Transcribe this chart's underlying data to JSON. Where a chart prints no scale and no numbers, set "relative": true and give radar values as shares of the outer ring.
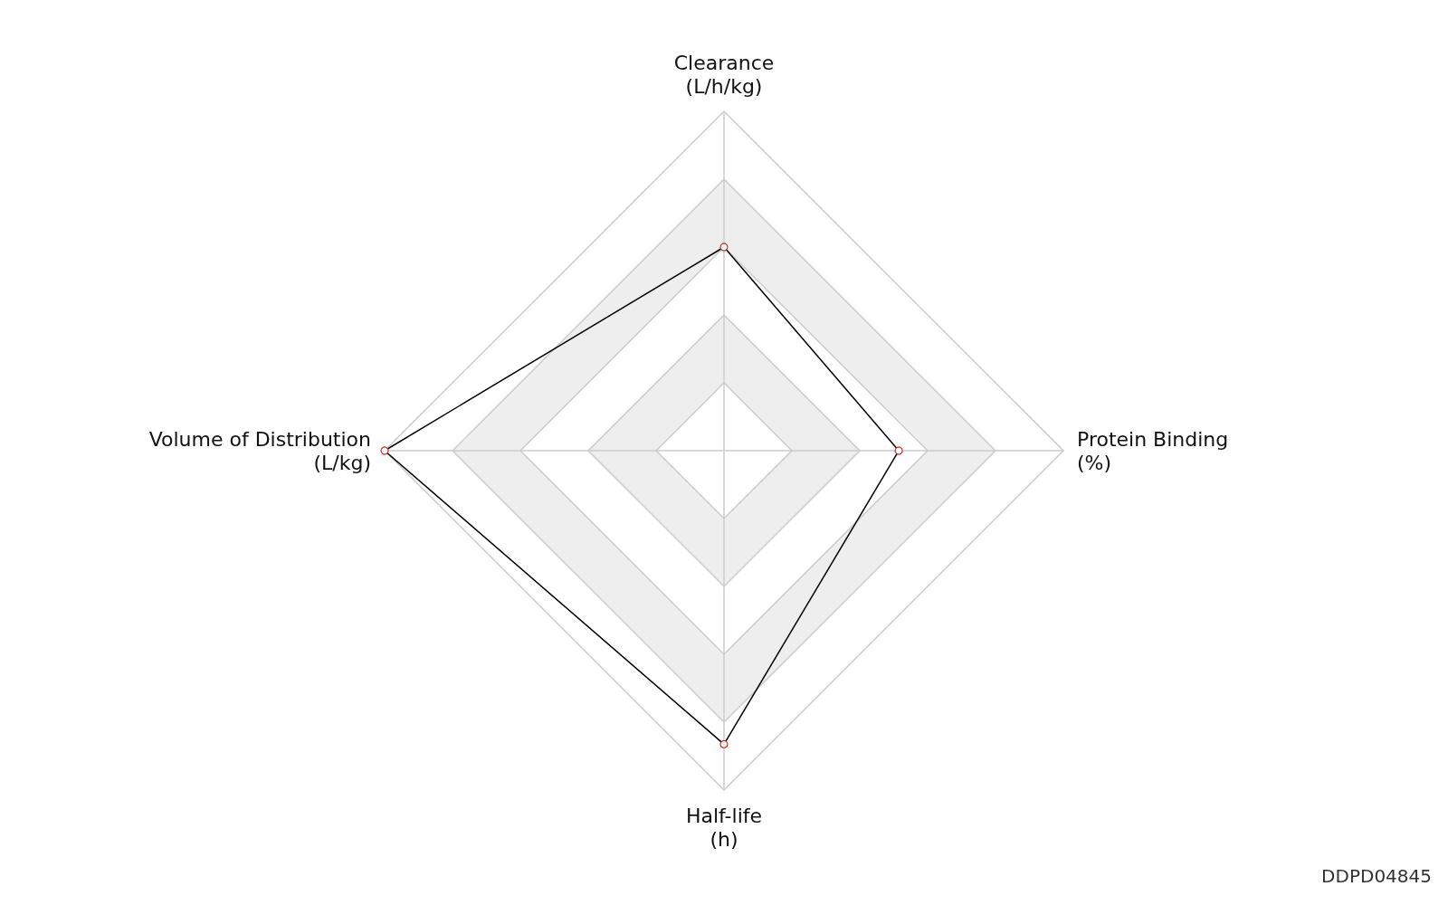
{
  "chart_data": {
    "type": "radar",
    "relative": true,
    "categories": [
      "Clearance\n(L/h/kg)",
      "Protein Binding\n(%)",
      "Half-life\n(h)",
      "Volume of Distribution\n(L/kg)"
    ],
    "series": [
      {
        "color": "#000000",
        "values": [
          0.6,
          0.515,
          0.865,
          1.0
        ]
      }
    ],
    "marker": "circle",
    "annotations": [
      "DDPD04845"
    ]
  }
}
